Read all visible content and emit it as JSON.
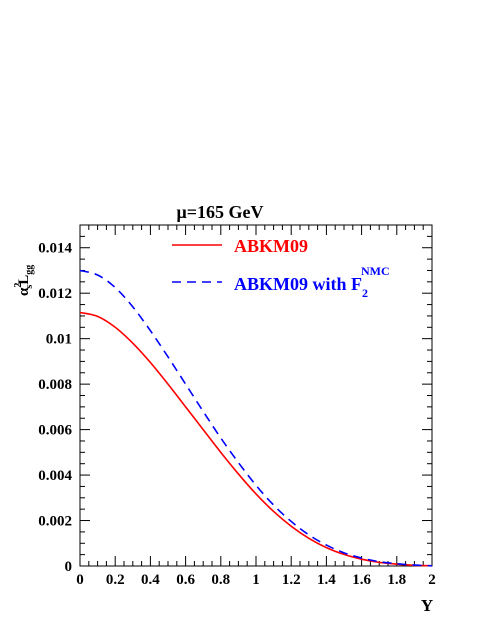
{
  "chart_data": {
    "type": "line",
    "title": "μ=165 GeV",
    "xlabel": "Y",
    "ylabel": {
      "alpha": "α",
      "alpha_sub": "s",
      "alpha_sup": "2",
      "L": "L",
      "L_sub": "gg"
    },
    "xlim": [
      0,
      2
    ],
    "ylim": [
      0,
      0.015
    ],
    "xticks": [
      "0",
      "0.2",
      "0.4",
      "0.6",
      "0.8",
      "1",
      "1.2",
      "1.4",
      "1.6",
      "1.8",
      "2"
    ],
    "xtick_values": [
      0,
      0.2,
      0.4,
      0.6,
      0.8,
      1,
      1.2,
      1.4,
      1.6,
      1.8,
      2
    ],
    "yticks": [
      "0",
      "0.002",
      "0.004",
      "0.006",
      "0.008",
      "0.01",
      "0.012",
      "0.014"
    ],
    "ytick_values": [
      0,
      0.002,
      0.004,
      0.006,
      0.008,
      0.01,
      0.012,
      0.014
    ],
    "legend": [
      {
        "label": "ABKM09",
        "color": "#ff0000",
        "style": "solid"
      },
      {
        "label": "ABKM09 with F",
        "sub": "2",
        "sup": "NMC",
        "color": "#0000ff",
        "style": "dashed"
      }
    ],
    "x": [
      0,
      0.1,
      0.2,
      0.3,
      0.4,
      0.5,
      0.6,
      0.7,
      0.8,
      0.9,
      1.0,
      1.1,
      1.2,
      1.3,
      1.4,
      1.5,
      1.6,
      1.7,
      1.8,
      1.9,
      2.0
    ],
    "series": [
      {
        "name": "ABKM09",
        "color": "#ff0000",
        "style": "solid",
        "values": [
          0.01115,
          0.01098,
          0.0105,
          0.0098,
          0.00895,
          0.008,
          0.007,
          0.006,
          0.005,
          0.00405,
          0.00317,
          0.0024,
          0.00175,
          0.00122,
          0.00081,
          0.00051,
          0.0003,
          0.00016,
          8e-05,
          3e-05,
          1e-05
        ]
      },
      {
        "name": "ABKM09 with F2 NMC",
        "color": "#0000ff",
        "style": "dashed",
        "values": [
          0.013,
          0.0128,
          0.01225,
          0.0114,
          0.01035,
          0.0092,
          0.008,
          0.0068,
          0.00563,
          0.00455,
          0.00355,
          0.00268,
          0.00196,
          0.00137,
          0.00092,
          0.00058,
          0.00035,
          0.00019,
          0.0001,
          4e-05,
          1e-05
        ]
      }
    ],
    "grid": false
  }
}
